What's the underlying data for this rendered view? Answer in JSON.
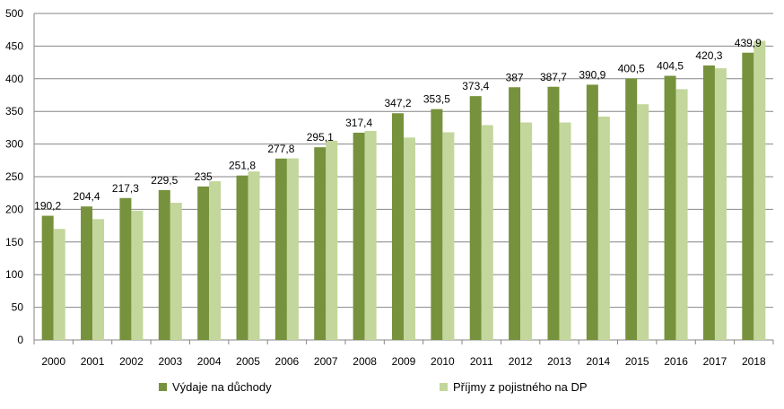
{
  "chart_data": {
    "type": "bar",
    "title": "",
    "xlabel": "",
    "ylabel": "",
    "ylim": [
      0,
      500
    ],
    "yticks": [
      0,
      50,
      100,
      150,
      200,
      250,
      300,
      350,
      400,
      450,
      500
    ],
    "grid": true,
    "legend_position": "bottom",
    "categories": [
      "2000",
      "2001",
      "2002",
      "2003",
      "2004",
      "2005",
      "2006",
      "2007",
      "2008",
      "2009",
      "2010",
      "2011",
      "2012",
      "2013",
      "2014",
      "2015",
      "2016",
      "2017",
      "2018"
    ],
    "series": [
      {
        "name": "Výdaje na důchody",
        "color": "#76923c",
        "values": [
          190.2,
          204.4,
          217.3,
          229.5,
          235,
          251.8,
          277.8,
          295.1,
          317.4,
          347.2,
          353.5,
          373.4,
          387,
          387.7,
          390.9,
          400.5,
          404.5,
          420.3,
          439.9
        ],
        "labels": [
          "190,2",
          "204,4",
          "217,3",
          "229,5",
          "235",
          "251,8",
          "277,8",
          "295,1",
          "317,4",
          "347,2",
          "353,5",
          "373,4",
          "387",
          "387,7",
          "390,9",
          "400,5",
          "404,5",
          "420,3",
          "439,9"
        ]
      },
      {
        "name": "Příjmy z pojistného na DP",
        "color": "#c3d69b",
        "values": [
          170,
          185,
          198,
          210,
          243,
          258,
          278,
          305,
          320,
          310,
          318,
          329,
          333,
          333,
          342,
          361,
          384,
          416,
          458
        ]
      }
    ]
  }
}
